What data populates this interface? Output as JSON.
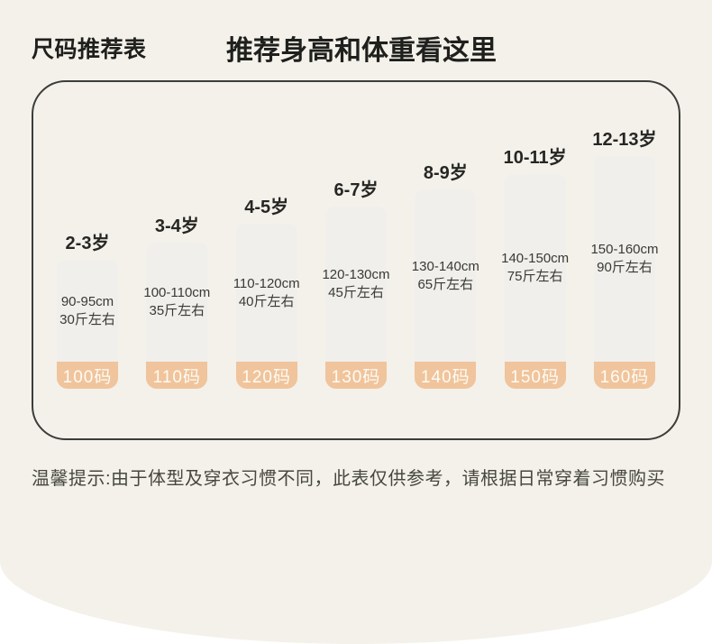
{
  "page": {
    "title": "尺码推荐表",
    "subtitle": "推荐身高和体重看这里",
    "note": "温馨提示:由于体型及穿衣习惯不同，此表仅供参考，请根据日常穿着习惯购买"
  },
  "chart_data": {
    "type": "bar",
    "title": "尺码推荐表",
    "subtitle": "推荐身高和体重看这里",
    "categories": [
      "2-3岁",
      "3-4岁",
      "4-5岁",
      "6-7岁",
      "8-9岁",
      "10-11岁",
      "12-13岁"
    ],
    "bars": [
      {
        "age": "2-3岁",
        "height_range": "90-95cm",
        "weight": "30斤左右",
        "size": "100码",
        "bar_height_px": "143px"
      },
      {
        "age": "3-4岁",
        "height_range": "100-110cm",
        "weight": "35斤左右",
        "size": "110码",
        "bar_height_px": "162px"
      },
      {
        "age": "4-5岁",
        "height_range": "110-120cm",
        "weight": "40斤左右",
        "size": "120码",
        "bar_height_px": "183px"
      },
      {
        "age": "6-7岁",
        "height_range": "120-130cm",
        "weight": "45斤左右",
        "size": "130码",
        "bar_height_px": "202px"
      },
      {
        "age": "8-9岁",
        "height_range": "130-140cm",
        "weight": "65斤左右",
        "size": "140码",
        "bar_height_px": "221px"
      },
      {
        "age": "10-11岁",
        "height_range": "140-150cm",
        "weight": "75斤左右",
        "size": "150码",
        "bar_height_px": "238px"
      },
      {
        "age": "12-13岁",
        "height_range": "150-160cm",
        "weight": "90斤左右",
        "size": "160码",
        "bar_height_px": "258px"
      }
    ],
    "layout": {
      "legend": false,
      "grid": false,
      "bars_bottom_aligned": true,
      "order": "ascending size left to right"
    }
  },
  "colors": {
    "panel_background": "#f3f1e9",
    "page_bottom_background": "#ffffff",
    "bar_fill": "#f0efec",
    "size_tag_fill": "#f0c49c",
    "size_tag_text": "#fdfbf3",
    "box_border": "#3c3c3a",
    "title_text": "#1f1f1d",
    "note_text": "#47473f"
  }
}
